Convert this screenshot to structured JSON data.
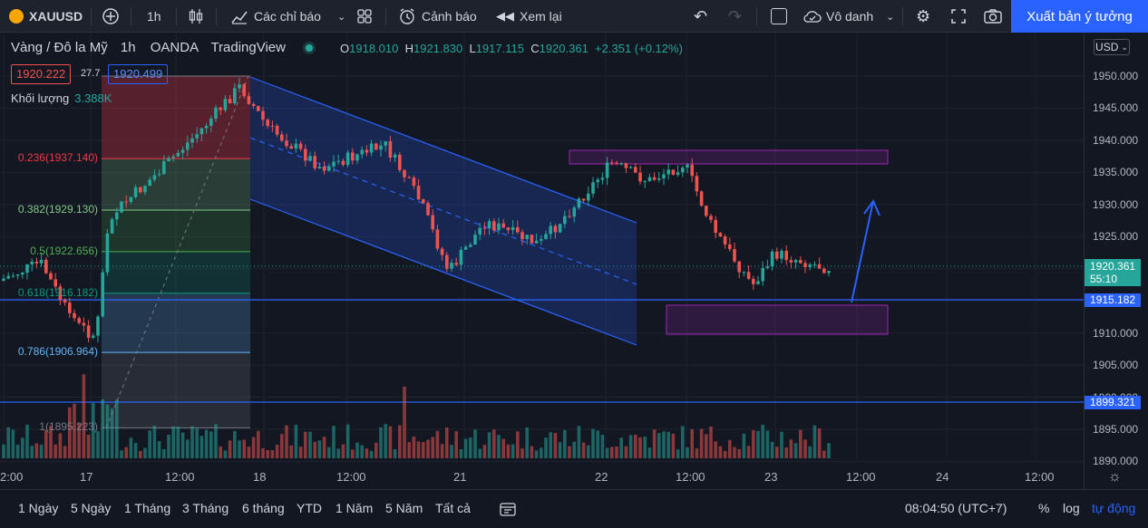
{
  "toolbar": {
    "symbol": "XAUUSD",
    "interval": "1h",
    "indicators": "Các chỉ báo",
    "alerts": "Cảnh báo",
    "replay": "Xem lại",
    "layout_name": "Vô danh",
    "publish": "Xuất bản ý tưởng"
  },
  "legend": {
    "title": "Vàng / Đô la Mỹ",
    "interval": "1h",
    "source": "OANDA",
    "platform": "TradingView",
    "o_label": "O",
    "o": "1918.010",
    "h_label": "H",
    "h": "1921.830",
    "l_label": "L",
    "l": "1917.115",
    "c_label": "C",
    "c": "1920.361",
    "change": "+2.351 (+0.12%)",
    "bid": "1920.222",
    "spread": "27.7",
    "ask": "1920.499",
    "volume_label": "Khối lượng",
    "volume": "3.388K"
  },
  "fib_levels": [
    {
      "label": "0.236(1937.140)",
      "price": 1937.14,
      "color": "#f23645"
    },
    {
      "label": "0.382(1929.130)",
      "price": 1929.13,
      "color": "#81c784"
    },
    {
      "label": "0.5(1922.656)",
      "price": 1922.656,
      "color": "#4caf50"
    },
    {
      "label": "0.618(1916.182)",
      "price": 1916.182,
      "color": "#089981"
    },
    {
      "label": "0.786(1906.964)",
      "price": 1906.964,
      "color": "#64b5f6"
    },
    {
      "label": "1(1895.223)",
      "price": 1895.223,
      "color": "#787b86"
    }
  ],
  "price_axis": {
    "currency": "USD",
    "ticks": [
      "1950.000",
      "1945.000",
      "1940.000",
      "1935.000",
      "1930.000",
      "1925.000",
      "1920.000",
      "1915.000",
      "1910.000",
      "1905.000",
      "1900.000",
      "1895.000",
      "1890.000"
    ],
    "current_price": "1920.361",
    "countdown": "55:10",
    "line_1": "1915.182",
    "line_2": "1899.321"
  },
  "time_axis": [
    "2:00",
    "17",
    "12:00",
    "18",
    "12:00",
    "21",
    "22",
    "12:00",
    "23",
    "12:00",
    "24",
    "12:00"
  ],
  "bottom": {
    "ranges": [
      "1 Ngày",
      "5 Ngày",
      "1 Tháng",
      "3 Tháng",
      "6 tháng",
      "YTD",
      "1 Năm",
      "5 Năm",
      "Tất cả"
    ],
    "clock": "08:04:50 (UTC+7)",
    "percent": "%",
    "log": "log",
    "auto": "tự động"
  },
  "colors": {
    "up": "#26a69a",
    "down": "#ef5350",
    "accent": "#2962ff",
    "box": "#9c27b0"
  }
}
